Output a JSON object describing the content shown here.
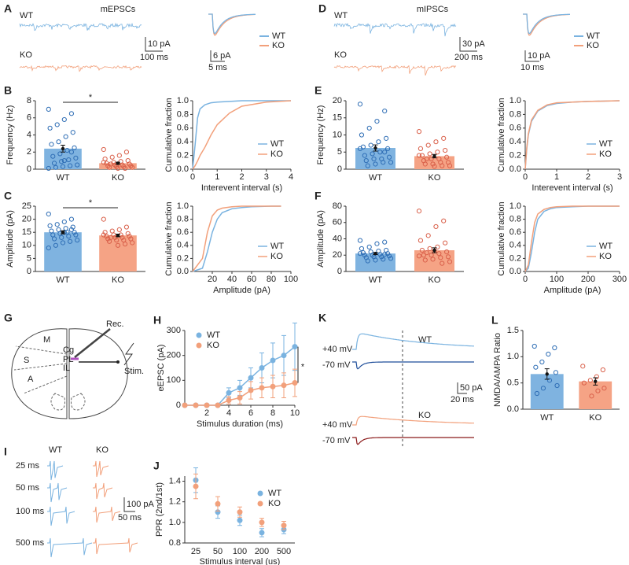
{
  "panels": {
    "A": {
      "label": "A",
      "title": "mEPSCs",
      "trace_labels": [
        "WT",
        "KO"
      ],
      "scale": [
        "10 pA",
        "100 ms"
      ],
      "inset_scale": [
        "6 pA",
        "5 ms"
      ],
      "legend": [
        "WT",
        "KO"
      ]
    },
    "D": {
      "label": "D",
      "title": "mIPSCs",
      "trace_labels": [
        "WT",
        "KO"
      ],
      "scale": [
        "30 pA",
        "200 ms"
      ],
      "inset_scale": [
        "10 pA",
        "10 ms"
      ],
      "legend": [
        "WT",
        "KO"
      ]
    },
    "G": {
      "label": "G",
      "regions": [
        "M",
        "S",
        "A",
        "Cg",
        "PL",
        "IL"
      ],
      "rec": "Rec.",
      "stim": "Stim."
    },
    "I": {
      "label": "I",
      "groups": [
        "WT",
        "KO"
      ],
      "intervals": [
        "25 ms",
        "50 ms",
        "100 ms",
        "500 ms"
      ],
      "scale": [
        "100 pA",
        "50 ms"
      ]
    },
    "K": {
      "label": "K",
      "holding": [
        "+40 mV",
        "-70 mV",
        "+40 mV",
        "-70 mV"
      ],
      "groups": [
        "WT",
        "KO"
      ],
      "scale": [
        "50 pA",
        "20 ms"
      ]
    }
  },
  "chart_data": [
    {
      "type": "bar",
      "label": "B",
      "ylabel": "Frequency (Hz)",
      "categories": [
        "WT",
        "KO"
      ],
      "values": [
        2.4,
        0.7
      ],
      "errors": [
        0.4,
        0.12
      ],
      "points": [
        [
          7,
          6.5,
          5.8,
          5.2,
          4.8,
          4.3,
          3.8,
          3.2,
          2.9,
          2.5,
          2.2,
          1.8,
          1.5,
          1.3,
          1.1,
          0.9,
          0.7,
          0.5,
          0.4,
          0.3,
          0.2,
          0.1,
          2.0,
          1.0
        ],
        [
          2.3,
          2.0,
          1.6,
          1.4,
          1.2,
          1.0,
          0.9,
          0.8,
          0.7,
          0.6,
          0.5,
          0.5,
          0.4,
          0.4,
          0.3,
          0.3,
          0.2,
          0.2,
          0.1,
          0.1,
          0.6,
          0.8
        ]
      ],
      "colors": [
        "#7fb3e0",
        "#f5a385"
      ],
      "point_colors": [
        "#2f6eb5",
        "#d9604a"
      ],
      "ylim": [
        0,
        8
      ],
      "yticks": [
        0,
        2,
        4,
        6,
        8
      ],
      "significance": "*"
    },
    {
      "type": "line",
      "ylabel": "Cumulative fraction",
      "xlabel": "Interevent interval (s)",
      "x": [
        0,
        0.1,
        0.2,
        0.3,
        0.5,
        0.75,
        1,
        1.5,
        2,
        3,
        4
      ],
      "series": [
        {
          "name": "WT",
          "color": "#7ab3e0",
          "values": [
            0,
            0.35,
            0.75,
            0.88,
            0.94,
            0.97,
            0.98,
            0.99,
            1,
            1,
            1
          ]
        },
        {
          "name": "KO",
          "color": "#f2a07b",
          "values": [
            0,
            0.05,
            0.12,
            0.2,
            0.32,
            0.5,
            0.65,
            0.82,
            0.92,
            0.98,
            1
          ]
        }
      ],
      "xlim": [
        0,
        4
      ],
      "xticks": [
        0,
        1,
        2,
        3,
        4
      ],
      "ylim": [
        0,
        1
      ],
      "yticks": [
        {
          "value": 0,
          "label": "0.0"
        },
        0.2,
        0.4,
        0.6,
        0.8,
        {
          "value": 1,
          "label": "1.0"
        }
      ],
      "legend": "lower right"
    },
    {
      "type": "bar",
      "label": "C",
      "ylabel": "Amplitude (pA)",
      "categories": [
        "WT",
        "KO"
      ],
      "values": [
        15,
        13.8
      ],
      "errors": [
        0.6,
        0.5
      ],
      "points": [
        [
          22,
          20,
          19,
          18,
          17.5,
          17,
          16.5,
          16,
          15.5,
          15,
          15,
          14.5,
          14,
          14,
          13.5,
          13,
          12.5,
          12,
          11.5,
          11,
          10,
          9,
          16,
          15
        ],
        [
          20,
          17,
          16,
          15.5,
          15,
          14.5,
          14,
          14,
          13.5,
          13.5,
          13,
          13,
          12.5,
          12.5,
          12,
          12,
          11.5,
          11,
          10.5,
          10,
          13,
          14
        ]
      ],
      "colors": [
        "#7fb3e0",
        "#f5a385"
      ],
      "point_colors": [
        "#2f6eb5",
        "#d9604a"
      ],
      "ylim": [
        0,
        25
      ],
      "yticks": [
        0,
        5,
        10,
        15,
        20,
        25
      ],
      "significance": "*"
    },
    {
      "type": "line",
      "ylabel": "Cumulative fraction",
      "xlabel": "Amplitude (pA)",
      "x": [
        0,
        10,
        15,
        20,
        25,
        30,
        40,
        50,
        60,
        80,
        90
      ],
      "series": [
        {
          "name": "WT",
          "color": "#7ab3e0",
          "values": [
            0,
            0.05,
            0.3,
            0.6,
            0.8,
            0.9,
            0.96,
            0.98,
            0.99,
            1,
            1
          ]
        },
        {
          "name": "KO",
          "color": "#f2a07b",
          "values": [
            0,
            0.2,
            0.6,
            0.85,
            0.94,
            0.97,
            0.99,
            1,
            1,
            1,
            1
          ]
        }
      ],
      "xlim": [
        0,
        100
      ],
      "xticks": [
        20,
        40,
        60,
        80,
        100
      ],
      "ylim": [
        0,
        1
      ],
      "yticks": [
        {
          "value": 0,
          "label": "0.0"
        },
        0.2,
        0.4,
        0.6,
        0.8,
        {
          "value": 1,
          "label": "1.0"
        }
      ],
      "legend": "lower right"
    },
    {
      "type": "bar",
      "label": "E",
      "ylabel": "Frequency (Hz)",
      "categories": [
        "WT",
        "KO"
      ],
      "values": [
        6.2,
        3.8
      ],
      "errors": [
        0.9,
        0.5
      ],
      "points": [
        [
          19,
          17,
          14,
          12,
          10,
          9,
          8,
          7,
          6.5,
          6,
          5,
          4.5,
          4,
          3.5,
          3,
          3,
          2.5,
          2,
          2,
          1.5,
          1,
          6,
          5
        ],
        [
          11,
          9,
          8,
          7,
          6,
          5.5,
          5,
          4.5,
          4,
          3.5,
          3,
          3,
          2.5,
          2,
          2,
          1.5,
          1.5,
          1,
          1,
          0.8,
          3,
          4
        ]
      ],
      "colors": [
        "#7fb3e0",
        "#f5a385"
      ],
      "point_colors": [
        "#2f6eb5",
        "#d9604a"
      ],
      "ylim": [
        0,
        20
      ],
      "yticks": [
        0,
        5,
        10,
        15,
        20
      ]
    },
    {
      "type": "line",
      "ylabel": "Cumulative fraction",
      "xlabel": "Interevent interval (s)",
      "x": [
        0,
        0.05,
        0.1,
        0.2,
        0.4,
        0.7,
        1,
        1.5,
        2,
        3
      ],
      "series": [
        {
          "name": "WT",
          "color": "#7ab3e0",
          "values": [
            0,
            0.3,
            0.5,
            0.7,
            0.85,
            0.93,
            0.96,
            0.98,
            0.99,
            1
          ]
        },
        {
          "name": "KO",
          "color": "#f2a07b",
          "values": [
            0,
            0.32,
            0.52,
            0.72,
            0.86,
            0.94,
            0.97,
            0.98,
            0.99,
            1
          ]
        }
      ],
      "xlim": [
        0,
        3
      ],
      "xticks": [
        0,
        1,
        2,
        3
      ],
      "ylim": [
        0,
        1
      ],
      "yticks": [
        {
          "value": 0,
          "label": "0.0"
        },
        0.2,
        0.4,
        0.6,
        0.8,
        {
          "value": 1,
          "label": "1.0"
        }
      ],
      "legend": "lower right"
    },
    {
      "type": "bar",
      "label": "F",
      "ylabel": "Amplitude (pA)",
      "categories": [
        "WT",
        "KO"
      ],
      "values": [
        22,
        26
      ],
      "errors": [
        1.3,
        3
      ],
      "points": [
        [
          38,
          36,
          34,
          30,
          28,
          26,
          25,
          24,
          23,
          22,
          21,
          20,
          20,
          19,
          18,
          18,
          17,
          16,
          15,
          14,
          13,
          22,
          21
        ],
        [
          74,
          62,
          55,
          44,
          38,
          35,
          30,
          28,
          26,
          24,
          22,
          20,
          20,
          18,
          17,
          15,
          14,
          12,
          10,
          25,
          23,
          19
        ]
      ],
      "colors": [
        "#7fb3e0",
        "#f5a385"
      ],
      "point_colors": [
        "#2f6eb5",
        "#d9604a"
      ],
      "ylim": [
        0,
        80
      ],
      "yticks": [
        0,
        20,
        40,
        60,
        80
      ]
    },
    {
      "type": "line",
      "ylabel": "Cumulative fraction",
      "xlabel": "Amplitude (pA)",
      "x": [
        0,
        10,
        20,
        30,
        40,
        60,
        80,
        100,
        150,
        200,
        300
      ],
      "series": [
        {
          "name": "WT",
          "color": "#7ab3e0",
          "values": [
            0,
            0.05,
            0.3,
            0.6,
            0.8,
            0.92,
            0.96,
            0.98,
            0.99,
            1,
            1
          ]
        },
        {
          "name": "KO",
          "color": "#f2a07b",
          "values": [
            0,
            0.1,
            0.45,
            0.75,
            0.88,
            0.95,
            0.98,
            0.99,
            1,
            1,
            1
          ]
        }
      ],
      "xlim": [
        0,
        300
      ],
      "xticks": [
        0,
        100,
        200,
        300
      ],
      "ylim": [
        0,
        1
      ],
      "yticks": [
        {
          "value": 0,
          "label": "0.0"
        },
        0.2,
        0.4,
        0.6,
        0.8,
        {
          "value": 1,
          "label": "1.0"
        }
      ],
      "legend": "lower right"
    },
    {
      "type": "line",
      "label": "H",
      "markers": true,
      "ylabel": "eEPSC (pA)",
      "xlabel": "Stimulus duration (ms)",
      "x": [
        0,
        1,
        2,
        3,
        4,
        5,
        6,
        7,
        8,
        9,
        10
      ],
      "series": [
        {
          "name": "WT",
          "color": "#7ab3e0",
          "values": [
            0,
            0,
            0,
            0,
            50,
            70,
            110,
            150,
            180,
            200,
            235
          ],
          "errors": [
            0,
            0,
            0,
            0,
            20,
            30,
            40,
            60,
            70,
            80,
            95
          ]
        },
        {
          "name": "KO",
          "color": "#f2a07b",
          "values": [
            0,
            0,
            0,
            0,
            20,
            30,
            60,
            70,
            75,
            80,
            90
          ],
          "errors": [
            0,
            0,
            0,
            0,
            15,
            25,
            35,
            40,
            45,
            50,
            55
          ]
        }
      ],
      "xlim": [
        0,
        10
      ],
      "xticks": [
        2,
        4,
        6,
        8,
        10
      ],
      "ylim": [
        0,
        300
      ],
      "yticks": [
        0,
        100,
        200,
        300
      ],
      "legend": "upper left",
      "significance": "*"
    },
    {
      "type": "dot",
      "label": "J",
      "ylabel": "PPR (2nd/1st)",
      "xlabel": "Stimulus interval (us)",
      "categories": [
        "25",
        "50",
        "100",
        "200",
        "500"
      ],
      "series": [
        {
          "name": "WT",
          "color": "#7ab3e0",
          "values": [
            1.41,
            1.1,
            1.02,
            0.9,
            0.93
          ],
          "errors": [
            0.12,
            0.06,
            0.05,
            0.04,
            0.04
          ]
        },
        {
          "name": "KO",
          "color": "#f2a07b",
          "values": [
            1.35,
            1.18,
            1.1,
            1.0,
            0.97
          ],
          "errors": [
            0.12,
            0.07,
            0.05,
            0.04,
            0.04
          ]
        }
      ],
      "ylim": [
        0.8,
        1.45
      ],
      "yticks": [
        0.8,
        {
          "value": 1,
          "label": "1.0"
        },
        1.2,
        1.4
      ],
      "legend": "upper right"
    },
    {
      "type": "bar",
      "label": "L",
      "ylabel": "NMDA/AMPA Ratio",
      "categories": [
        "WT",
        "KO"
      ],
      "values": [
        0.67,
        0.53
      ],
      "errors": [
        0.1,
        0.07
      ],
      "points": [
        [
          1.2,
          1.17,
          1.05,
          0.9,
          0.8,
          0.7,
          0.55,
          0.4,
          0.3,
          0.45
        ],
        [
          0.82,
          0.75,
          0.62,
          0.55,
          0.5,
          0.4,
          0.35,
          0.25
        ]
      ],
      "colors": [
        "#7fb3e0",
        "#f5a385"
      ],
      "point_colors": [
        "#2f6eb5",
        "#d9604a"
      ],
      "ylim": [
        0,
        1.5
      ],
      "yticks": [
        {
          "value": 0,
          "label": "0.0"
        },
        0.5,
        {
          "value": 1,
          "label": "1.0"
        },
        1.5
      ]
    }
  ]
}
